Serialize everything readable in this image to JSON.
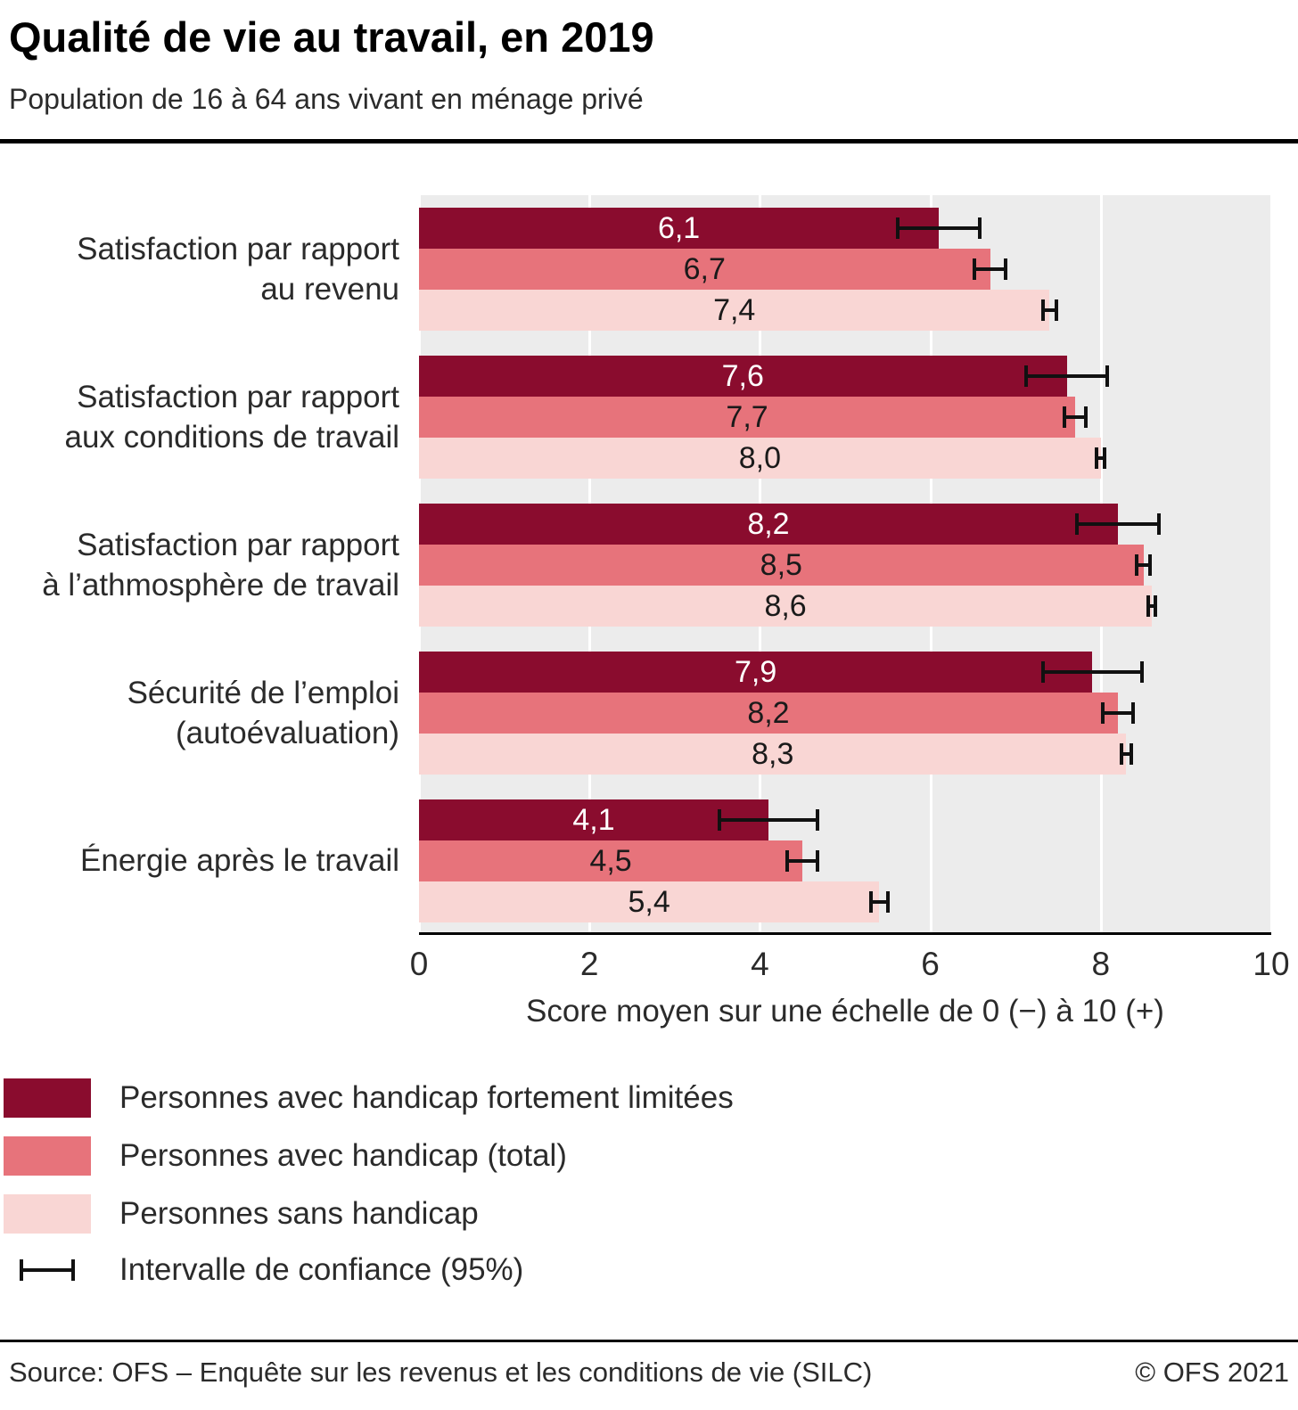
{
  "header": {
    "title": "Qualité de vie au travail, en 2019",
    "subtitle": "Population de 16 à 64 ans vivant en ménage privé"
  },
  "chart_data": {
    "type": "bar",
    "orientation": "horizontal",
    "title": "Qualité de vie au travail, en 2019",
    "categories": [
      "Satisfaction par rapport\nau revenu",
      "Satisfaction par rapport\naux conditions de travail",
      "Satisfaction par rapport\nà l’athmosphère de travail",
      "Sécurité de l’emploi\n(autoévaluation)",
      "Énergie après le travail"
    ],
    "series": [
      {
        "name": "Personnes avec handicap fortement limitées",
        "color": "#8a0c2e",
        "value_label_color": "#ffffff",
        "values": [
          6.1,
          7.6,
          8.2,
          7.9,
          4.1
        ],
        "value_labels": [
          "6,1",
          "7,6",
          "8,2",
          "7,9",
          "4,1"
        ],
        "ci_low": [
          5.6,
          7.1,
          7.7,
          7.3,
          3.5
        ],
        "ci_high": [
          6.6,
          8.1,
          8.7,
          8.5,
          4.7
        ]
      },
      {
        "name": "Personnes avec handicap (total)",
        "color": "#e7737b",
        "value_label_color": "#1a1a1a",
        "values": [
          6.7,
          7.7,
          8.5,
          8.2,
          4.5
        ],
        "value_labels": [
          "6,7",
          "7,7",
          "8,5",
          "8,2",
          "4,5"
        ],
        "ci_low": [
          6.5,
          7.55,
          8.4,
          8.0,
          4.3
        ],
        "ci_high": [
          6.9,
          7.85,
          8.6,
          8.4,
          4.7
        ]
      },
      {
        "name": "Personnes sans handicap",
        "color": "#f9d6d4",
        "value_label_color": "#1a1a1a",
        "values": [
          7.4,
          8.0,
          8.6,
          8.3,
          5.4
        ],
        "value_labels": [
          "7,4",
          "8,0",
          "8,6",
          "8,3",
          "5,4"
        ],
        "ci_low": [
          7.3,
          7.93,
          8.54,
          8.22,
          5.28
        ],
        "ci_high": [
          7.5,
          8.07,
          8.66,
          8.38,
          5.52
        ]
      }
    ],
    "xlim": [
      0,
      10
    ],
    "xticks": [
      0,
      2,
      4,
      6,
      8,
      10
    ],
    "xtick_labels": [
      "0",
      "2",
      "4",
      "6",
      "8",
      "10"
    ],
    "xlabel": "Score moyen sur une échelle de 0 (−) à 10 (+)",
    "plot_background": "#ececec",
    "gridline_color": "#ffffff",
    "ci_color": "#111111",
    "grid": true,
    "legend_position": "bottom-left"
  },
  "legend": {
    "items": [
      {
        "type": "swatch",
        "color": "#8a0c2e",
        "label": "Personnes avec handicap fortement limitées"
      },
      {
        "type": "swatch",
        "color": "#e7737b",
        "label": "Personnes avec handicap (total)"
      },
      {
        "type": "swatch",
        "color": "#f9d6d4",
        "label": "Personnes sans handicap"
      },
      {
        "type": "ci",
        "label": "Intervalle de confiance (95%)"
      }
    ]
  },
  "footer": {
    "source": "Source: OFS – Enquête sur les revenus et les conditions de vie (SILC)",
    "copyright": "© OFS 2021"
  }
}
